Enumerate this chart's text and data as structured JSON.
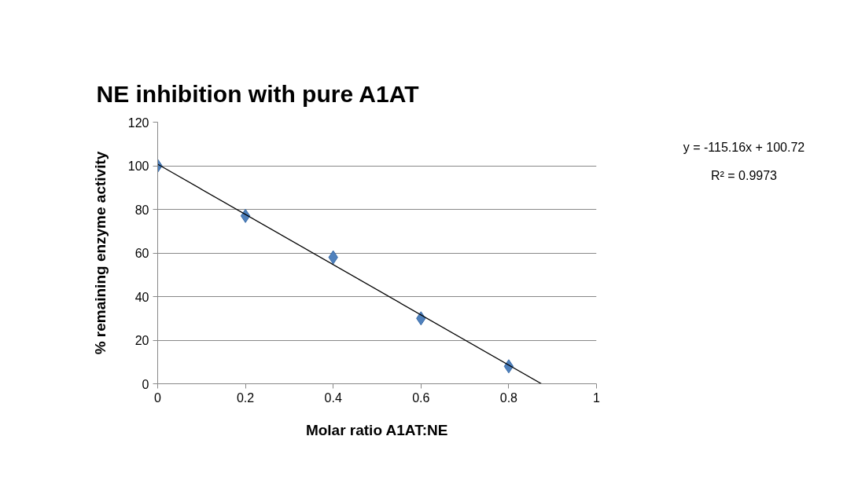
{
  "chart_data": {
    "type": "scatter",
    "title": "NE inhibition with pure A1AT",
    "xlabel": "Molar ratio A1AT:NE",
    "ylabel": "% remaining enzyme activity",
    "x": [
      0,
      0.2,
      0.4,
      0.6,
      0.8
    ],
    "series": [
      {
        "color": "#4f81bd",
        "marker": "diamond",
        "values": [
          100,
          77,
          58,
          30,
          8
        ]
      },
      {
        "type": "line",
        "color": "#000000",
        "marker": "none",
        "line_style": "solid",
        "x": [
          0,
          0.8746
        ],
        "values": [
          100.7,
          0
        ]
      }
    ],
    "annotations": [
      "y = -115.16x + 100.72",
      "R² = 0.9973"
    ],
    "xlim": [
      0,
      1
    ],
    "ylim": [
      0,
      120
    ],
    "xticks": [
      0,
      0.2,
      0.4,
      0.6,
      0.8,
      1
    ],
    "yticks": [
      0,
      20,
      40,
      60,
      80,
      100,
      120
    ],
    "grid": "y"
  }
}
